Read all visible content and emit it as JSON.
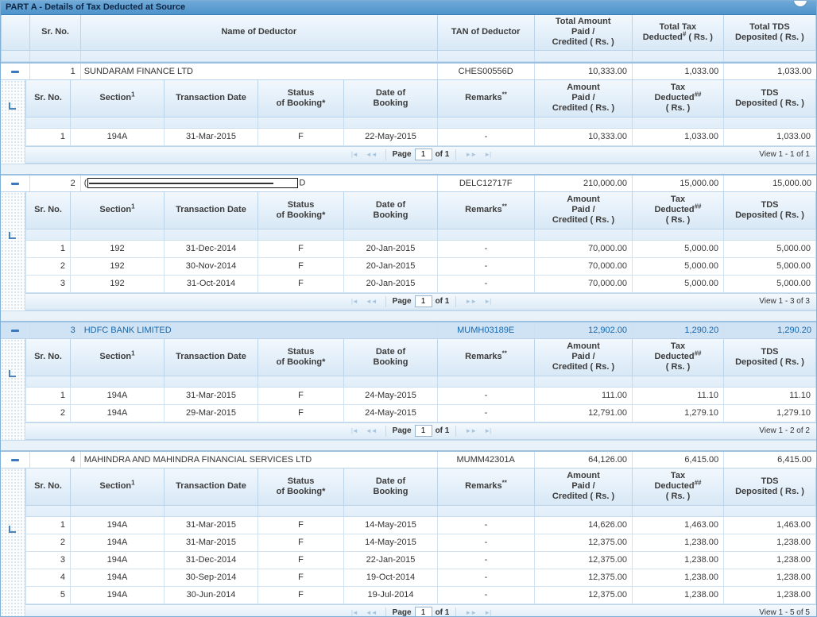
{
  "title": "PART A - Details of Tax Deducted at Source",
  "main_header": {
    "sr_no": "Sr. No.",
    "name": "Name of Deductor",
    "tan": "TAN of Deductor",
    "amount": "Total Amount\nPaid /\nCredited ( Rs. )",
    "tax_line1": "Total Tax",
    "tax_line2_pre": "Deducted",
    "tax_sup": "#",
    "tax_line2_post": " ( Rs. )",
    "tds": "Total TDS\nDeposited ( Rs. )"
  },
  "sub_header": {
    "sr_no": "Sr. No.",
    "section_pre": "Section",
    "section_sup": "1",
    "txn_date": "Transaction Date",
    "status": "Status\nof Booking*",
    "date_of_booking": "Date of\nBooking",
    "remarks_pre": "Remarks",
    "remarks_sup": "**",
    "amount": "Amount\nPaid /\nCredited ( Rs. )",
    "tax_line1": "Tax",
    "tax_line2_pre": "Deducted",
    "tax_sup": "##",
    "tax_line3": "( Rs. )",
    "tds": "TDS\nDeposited ( Rs. )"
  },
  "pagination": {
    "first_icon": "|◄",
    "prev_icon": "◄◄",
    "page_label": "Page",
    "next_icon": "►►",
    "last_icon": "►|"
  },
  "groups": [
    {
      "sr": "1",
      "name": "SUNDARAM FINANCE LTD",
      "redacted": false,
      "tan": "CHES00556D",
      "total_amount": "10,333.00",
      "total_tax": "1,033.00",
      "total_tds": "1,033.00",
      "highlighted": false,
      "rows": [
        [
          "1",
          "194A",
          "31-Mar-2015",
          "F",
          "22-May-2015",
          "-",
          "10,333.00",
          "1,033.00",
          "1,033.00"
        ]
      ],
      "page_value": "1",
      "of_label": "of 1",
      "view": "View 1 - 1 of 1"
    },
    {
      "sr": "2",
      "name_prefix": "(",
      "name_suffix": "D",
      "redacted": true,
      "tan": "DELC12717F",
      "total_amount": "210,000.00",
      "total_tax": "15,000.00",
      "total_tds": "15,000.00",
      "highlighted": false,
      "rows": [
        [
          "1",
          "192",
          "31-Dec-2014",
          "F",
          "20-Jan-2015",
          "-",
          "70,000.00",
          "5,000.00",
          "5,000.00"
        ],
        [
          "2",
          "192",
          "30-Nov-2014",
          "F",
          "20-Jan-2015",
          "-",
          "70,000.00",
          "5,000.00",
          "5,000.00"
        ],
        [
          "3",
          "192",
          "31-Oct-2014",
          "F",
          "20-Jan-2015",
          "-",
          "70,000.00",
          "5,000.00",
          "5,000.00"
        ]
      ],
      "page_value": "1",
      "of_label": "of 1",
      "view": "View 1 - 3 of 3"
    },
    {
      "sr": "3",
      "name": "HDFC BANK LIMITED",
      "redacted": false,
      "tan": "MUMH03189E",
      "total_amount": "12,902.00",
      "total_tax": "1,290.20",
      "total_tds": "1,290.20",
      "highlighted": true,
      "rows": [
        [
          "1",
          "194A",
          "31-Mar-2015",
          "F",
          "24-May-2015",
          "-",
          "111.00",
          "11.10",
          "11.10"
        ],
        [
          "2",
          "194A",
          "29-Mar-2015",
          "F",
          "24-May-2015",
          "-",
          "12,791.00",
          "1,279.10",
          "1,279.10"
        ]
      ],
      "page_value": "1",
      "of_label": "of 1",
      "view": "View 1 - 2 of 2"
    },
    {
      "sr": "4",
      "name": "MAHINDRA AND MAHINDRA FINANCIAL SERVICES LTD",
      "redacted": false,
      "tan": "MUMM42301A",
      "total_amount": "64,126.00",
      "total_tax": "6,415.00",
      "total_tds": "6,415.00",
      "highlighted": false,
      "rows": [
        [
          "1",
          "194A",
          "31-Mar-2015",
          "F",
          "14-May-2015",
          "-",
          "14,626.00",
          "1,463.00",
          "1,463.00"
        ],
        [
          "2",
          "194A",
          "31-Mar-2015",
          "F",
          "14-May-2015",
          "-",
          "12,375.00",
          "1,238.00",
          "1,238.00"
        ],
        [
          "3",
          "194A",
          "31-Dec-2014",
          "F",
          "22-Jan-2015",
          "-",
          "12,375.00",
          "1,238.00",
          "1,238.00"
        ],
        [
          "4",
          "194A",
          "30-Sep-2014",
          "F",
          "19-Oct-2014",
          "-",
          "12,375.00",
          "1,238.00",
          "1,238.00"
        ],
        [
          "5",
          "194A",
          "30-Jun-2014",
          "F",
          "19-Jul-2014",
          "-",
          "12,375.00",
          "1,238.00",
          "1,238.00"
        ]
      ],
      "page_value": "1",
      "of_label": "of 1",
      "view": "View 1 - 5 of 5"
    }
  ]
}
